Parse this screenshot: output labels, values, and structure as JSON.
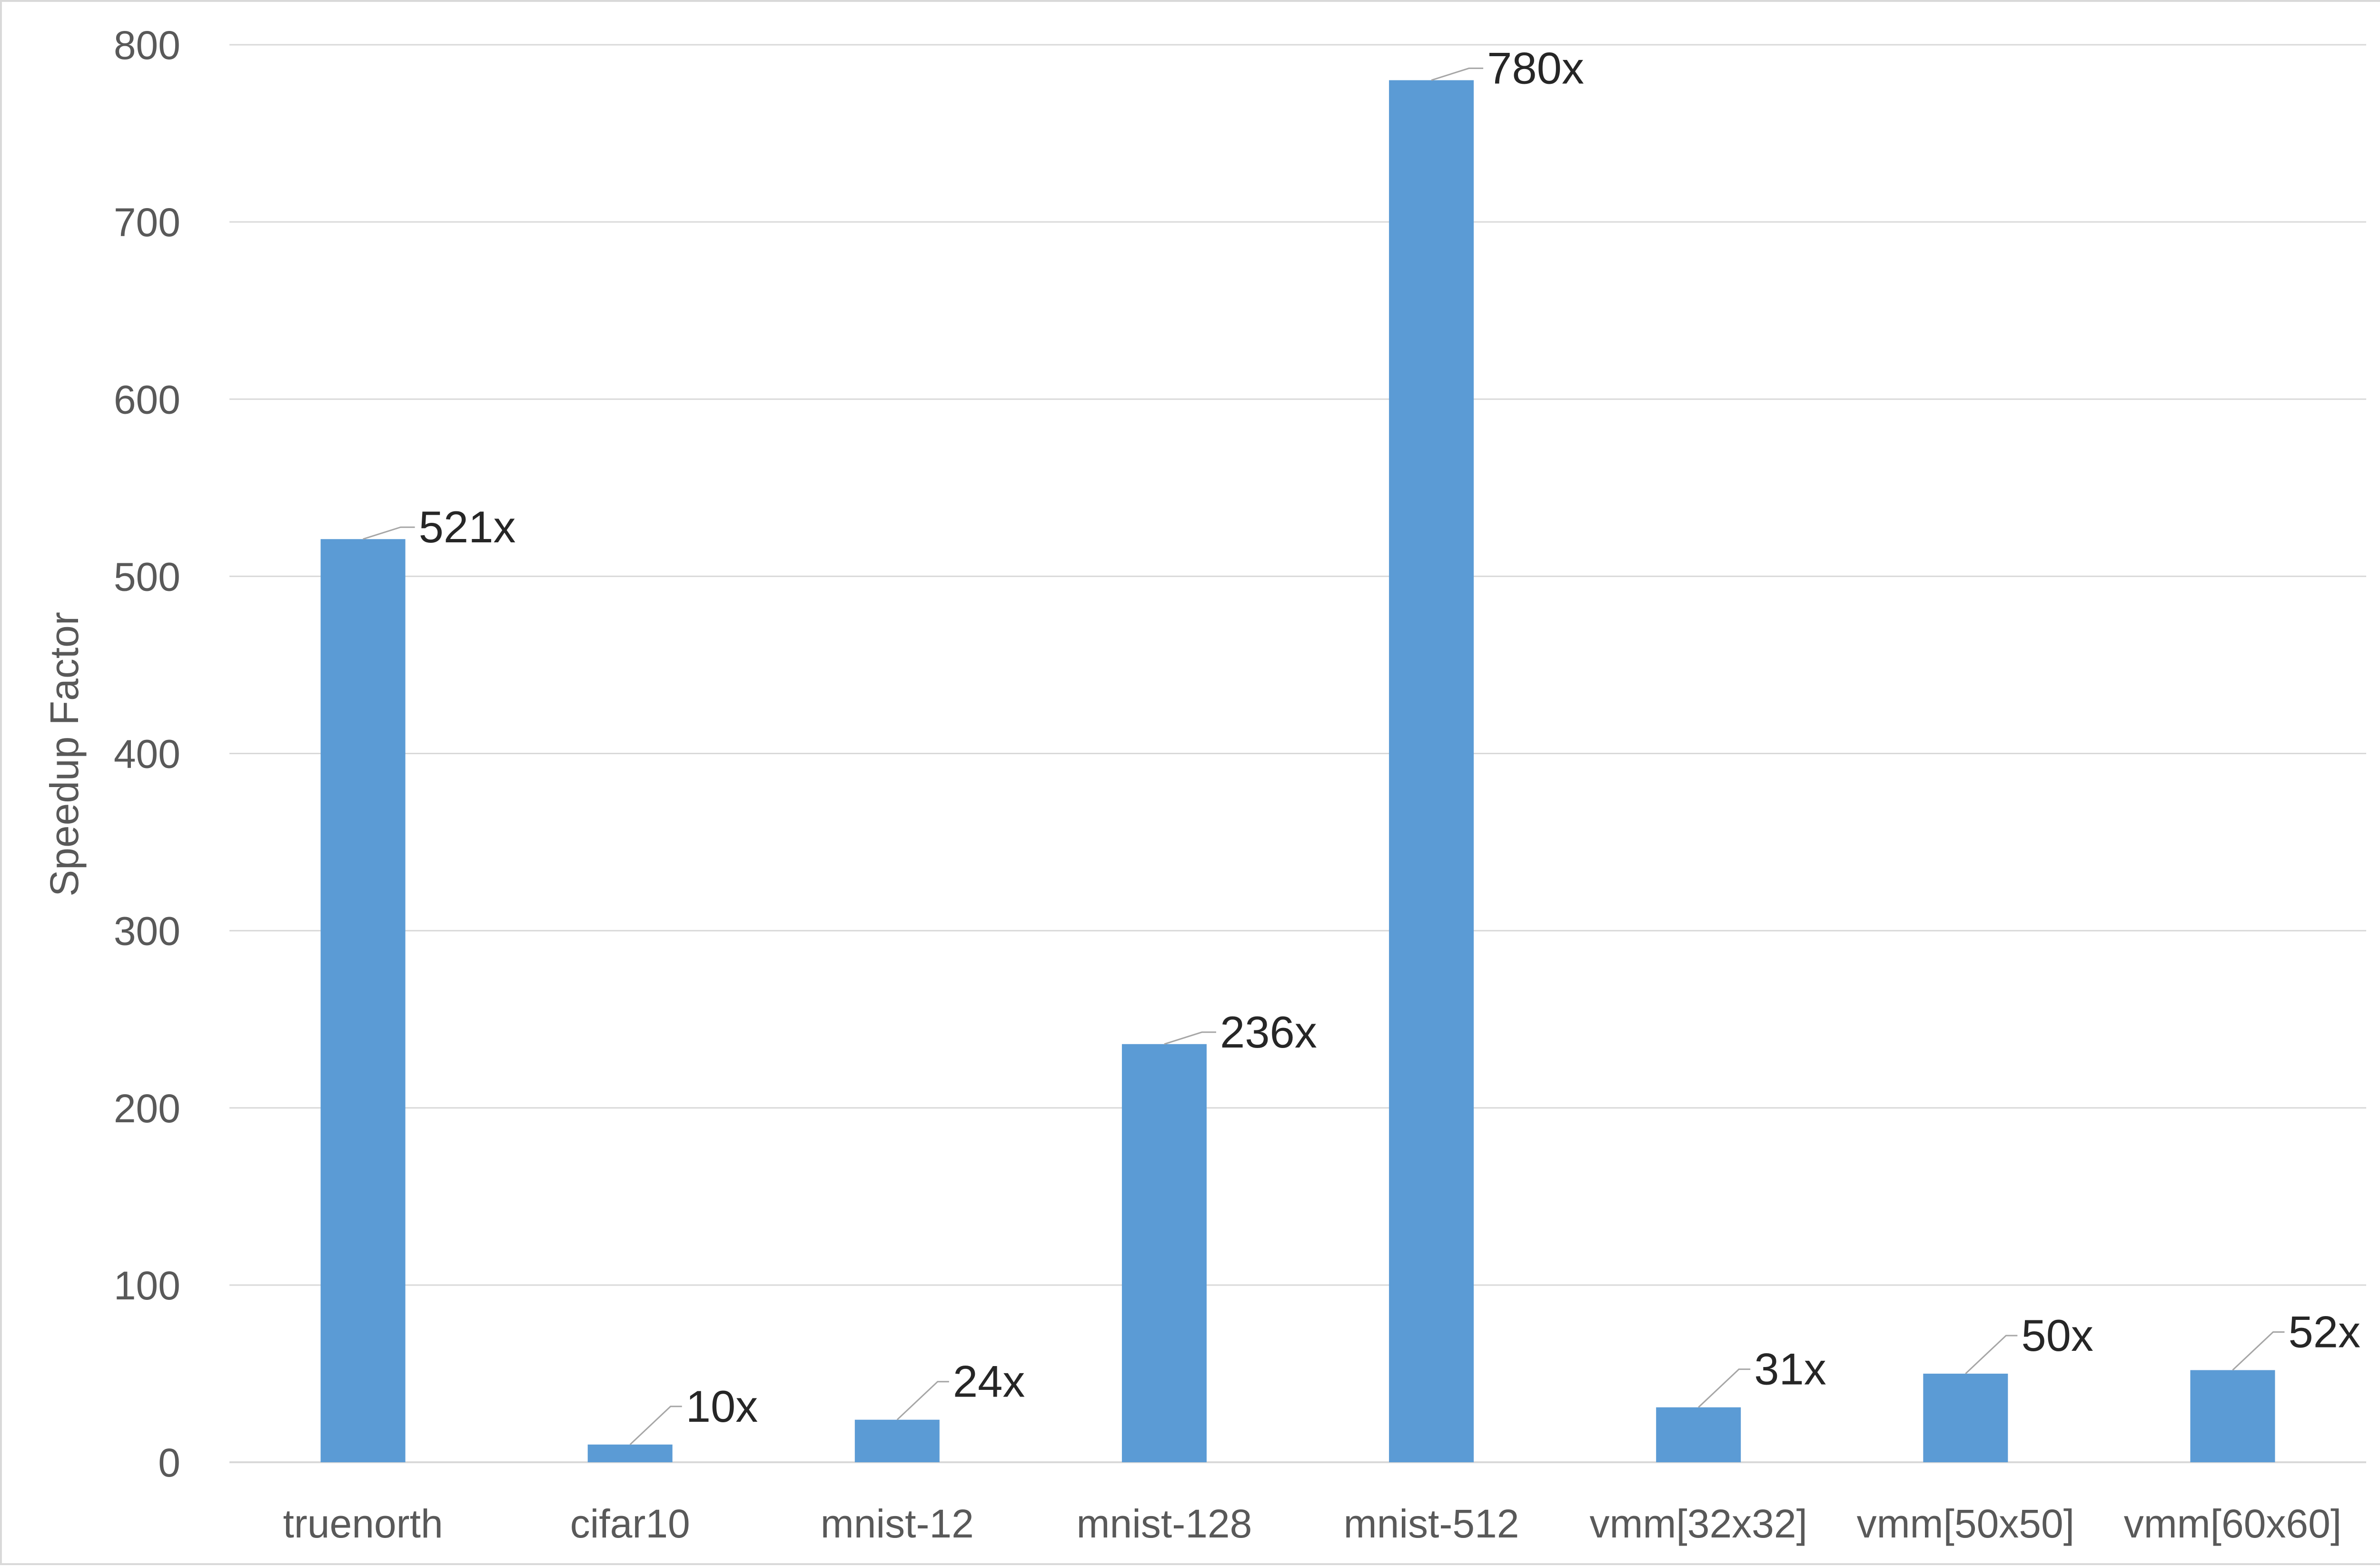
{
  "chart_data": {
    "type": "bar",
    "title": "",
    "xlabel": "",
    "ylabel": "Speedup Factor",
    "categories": [
      "truenorth",
      "cifar10",
      "mnist-12",
      "mnist-128",
      "mnist-512",
      "vmm[32x32]",
      "vmm[50x50]",
      "vmm[60x60]"
    ],
    "values": [
      521,
      10,
      24,
      236,
      780,
      31,
      50,
      52
    ],
    "data_labels": [
      "521x",
      "10x",
      "24x",
      "236x",
      "780x",
      "31x",
      "50x",
      "52x"
    ],
    "ylim": [
      0,
      800
    ],
    "yticks": [
      0,
      100,
      200,
      300,
      400,
      500,
      600,
      700,
      800
    ],
    "ytick_labels": [
      "0",
      "100",
      "200",
      "300",
      "400",
      "500",
      "600",
      "700",
      "800"
    ],
    "grid": true,
    "legend": "none",
    "colors": {
      "bar": "#5b9bd5",
      "grid": "#d9d9d9",
      "leader_line": "#a6a6a6"
    }
  }
}
